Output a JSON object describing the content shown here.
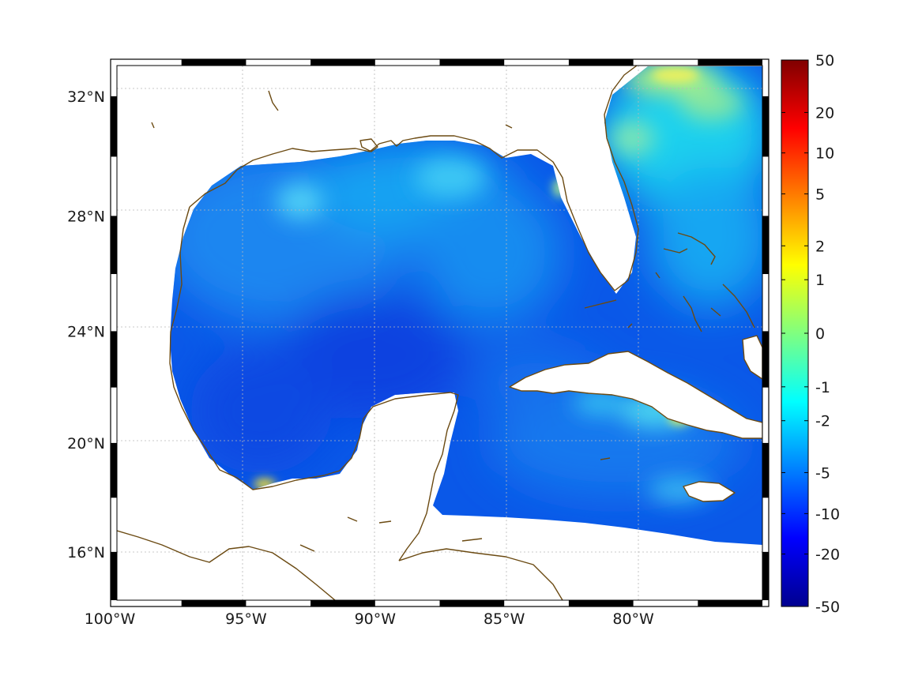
{
  "map": {
    "type": "heatmap",
    "projection": "mercator",
    "lon_range": [
      -100,
      -75
    ],
    "lat_range": [
      14.2,
      33
    ],
    "grid": true,
    "frame": "black-white checkered",
    "lon_ticks": [
      {
        "value": -100,
        "label": "100°W"
      },
      {
        "value": -95,
        "label": "95°W"
      },
      {
        "value": -90,
        "label": "90°W"
      },
      {
        "value": -85,
        "label": "85°W"
      },
      {
        "value": -80,
        "label": "80°W"
      }
    ],
    "lat_ticks": [
      {
        "value": 16,
        "label": "16°N"
      },
      {
        "value": 20,
        "label": "20°N"
      },
      {
        "value": 24,
        "label": "24°N"
      },
      {
        "value": 28,
        "label": "28°N"
      },
      {
        "value": 32,
        "label": "32°N"
      }
    ],
    "colors": {
      "ocean_base": "#0a55e6",
      "coastline": "#6b4a12",
      "land": "#ffffff"
    }
  },
  "colorbar": {
    "colormap": "jet",
    "scale": "symmetric log-like",
    "ticks": [
      {
        "label": "50",
        "frac": 1.0
      },
      {
        "label": "20",
        "frac": 0.904
      },
      {
        "label": "10",
        "frac": 0.83
      },
      {
        "label": "5",
        "frac": 0.755
      },
      {
        "label": "2",
        "frac": 0.66
      },
      {
        "label": "1",
        "frac": 0.598
      },
      {
        "label": "0",
        "frac": 0.5
      },
      {
        "label": "-1",
        "frac": 0.402
      },
      {
        "label": "-2",
        "frac": 0.34
      },
      {
        "label": "-5",
        "frac": 0.245
      },
      {
        "label": "-10",
        "frac": 0.17
      },
      {
        "label": "-20",
        "frac": 0.096
      },
      {
        "label": "-50",
        "frac": 0.0
      }
    ]
  }
}
